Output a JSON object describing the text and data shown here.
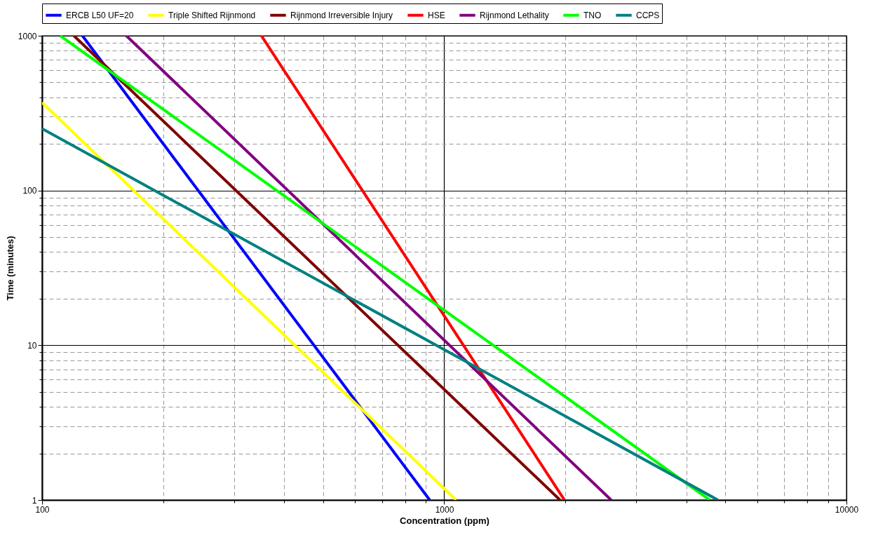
{
  "chart_data": {
    "type": "line",
    "xlabel": "Concentration (ppm)",
    "ylabel": "Time (minutes)",
    "log": "xy",
    "grid": true,
    "legend": "top",
    "line_style": "solid",
    "marker": "none",
    "xlim": [
      100,
      10000
    ],
    "ylim": [
      1,
      1000
    ],
    "xticks": [
      100,
      {
        "value": 200,
        "label": null
      },
      {
        "value": 300,
        "label": null
      },
      {
        "value": 400,
        "label": null
      },
      {
        "value": 500,
        "label": null
      },
      {
        "value": 600,
        "label": null
      },
      {
        "value": 700,
        "label": null
      },
      {
        "value": 800,
        "label": null
      },
      {
        "value": 900,
        "label": null
      },
      1000,
      {
        "value": 2000,
        "label": null
      },
      {
        "value": 3000,
        "label": null
      },
      {
        "value": 4000,
        "label": null
      },
      {
        "value": 5000,
        "label": null
      },
      {
        "value": 6000,
        "label": null
      },
      {
        "value": 7000,
        "label": null
      },
      {
        "value": 8000,
        "label": null
      },
      {
        "value": 9000,
        "label": null
      },
      10000
    ],
    "yticks": [
      1,
      {
        "value": 2,
        "label": null
      },
      {
        "value": 3,
        "label": null
      },
      {
        "value": 4,
        "label": null
      },
      {
        "value": 5,
        "label": null
      },
      {
        "value": 6,
        "label": null
      },
      {
        "value": 7,
        "label": null
      },
      {
        "value": 8,
        "label": null
      },
      {
        "value": 9,
        "label": null
      },
      10,
      {
        "value": 20,
        "label": null
      },
      {
        "value": 30,
        "label": null
      },
      {
        "value": 40,
        "label": null
      },
      {
        "value": 50,
        "label": null
      },
      {
        "value": 60,
        "label": null
      },
      {
        "value": 70,
        "label": null
      },
      {
        "value": 80,
        "label": null
      },
      {
        "value": 90,
        "label": null
      },
      100,
      {
        "value": 200,
        "label": null
      },
      {
        "value": 300,
        "label": null
      },
      {
        "value": 400,
        "label": null
      },
      {
        "value": 500,
        "label": null
      },
      {
        "value": 600,
        "label": null
      },
      {
        "value": 700,
        "label": null
      },
      {
        "value": 800,
        "label": null
      },
      {
        "value": 900,
        "label": null
      },
      1000
    ],
    "series": [
      {
        "name": "ERCB L50 UF=20",
        "color": "#0000ff",
        "x": [
          126,
          920
        ],
        "values": [
          1000,
          1
        ]
      },
      {
        "name": "Triple Shifted Rijnmond",
        "color": "#ffff00",
        "x": [
          100,
          1070
        ],
        "values": [
          370,
          1
        ]
      },
      {
        "name": "Rijnmond Irreversible Injury",
        "color": "#800000",
        "x": [
          120,
          1940
        ],
        "values": [
          1000,
          1
        ]
      },
      {
        "name": "HSE",
        "color": "#ff0000",
        "x": [
          351,
          1990
        ],
        "values": [
          1000,
          1
        ]
      },
      {
        "name": "Rijnmond Lethality",
        "color": "#800080",
        "x": [
          162,
          2600
        ],
        "values": [
          1000,
          1
        ]
      },
      {
        "name": "TNO",
        "color": "#00ff00",
        "x": [
          111,
          4570
        ],
        "values": [
          1000,
          1
        ]
      },
      {
        "name": "CCPS",
        "color": "#008080",
        "x": [
          100,
          4790
        ],
        "values": [
          251,
          1
        ]
      }
    ]
  }
}
